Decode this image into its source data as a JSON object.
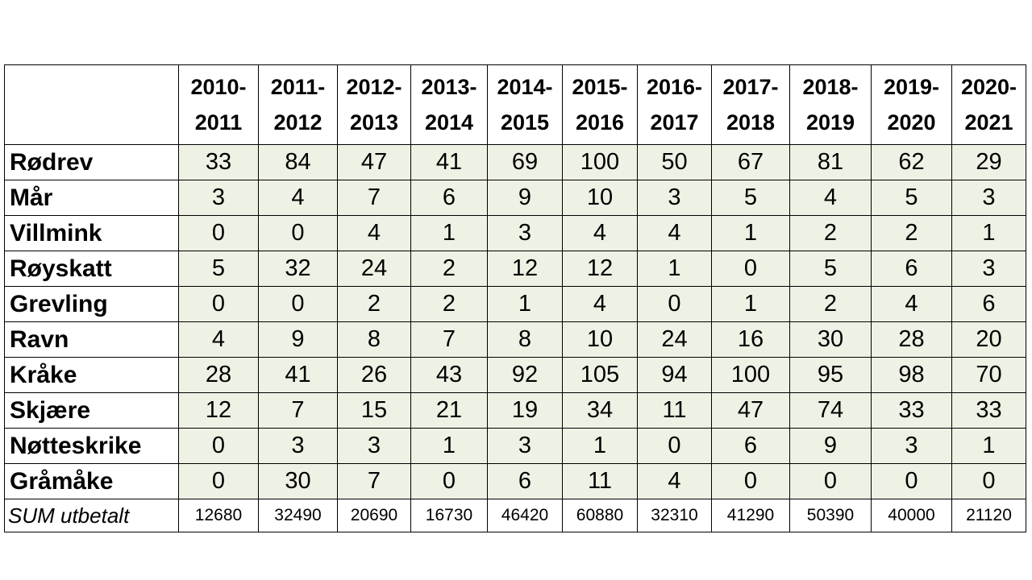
{
  "table": {
    "years": [
      {
        "line1": "2010-",
        "line2": "2011"
      },
      {
        "line1": "2011-",
        "line2": "2012"
      },
      {
        "line1": "2012-",
        "line2": "2013"
      },
      {
        "line1": "2013-",
        "line2": "2014"
      },
      {
        "line1": "2014-",
        "line2": "2015"
      },
      {
        "line1": "2015-",
        "line2": "2016"
      },
      {
        "line1": "2016-",
        "line2": "2017"
      },
      {
        "line1": "2017-",
        "line2": "2018"
      },
      {
        "line1": "2018-",
        "line2": "2019"
      },
      {
        "line1": "2019-",
        "line2": "2020"
      },
      {
        "line1": "2020-",
        "line2": "2021"
      }
    ],
    "rows": [
      {
        "label": "Rødrev",
        "values": [
          "33",
          "84",
          "47",
          "41",
          "69",
          "100",
          "50",
          "67",
          "81",
          "62",
          "29"
        ]
      },
      {
        "label": "Mår",
        "values": [
          "3",
          "4",
          "7",
          "6",
          "9",
          "10",
          "3",
          "5",
          "4",
          "5",
          "3"
        ]
      },
      {
        "label": "Villmink",
        "values": [
          "0",
          "0",
          "4",
          "1",
          "3",
          "4",
          "4",
          "1",
          "2",
          "2",
          "1"
        ]
      },
      {
        "label": "Røyskatt",
        "values": [
          "5",
          "32",
          "24",
          "2",
          "12",
          "12",
          "1",
          "0",
          "5",
          "6",
          "3"
        ]
      },
      {
        "label": "Grevling",
        "values": [
          "0",
          "0",
          "2",
          "2",
          "1",
          "4",
          "0",
          "1",
          "2",
          "4",
          "6"
        ]
      },
      {
        "label": "Ravn",
        "values": [
          "4",
          "9",
          "8",
          "7",
          "8",
          "10",
          "24",
          "16",
          "30",
          "28",
          "20"
        ]
      },
      {
        "label": "Kråke",
        "values": [
          "28",
          "41",
          "26",
          "43",
          "92",
          "105",
          "94",
          "100",
          "95",
          "98",
          "70"
        ]
      },
      {
        "label": "Skjære",
        "values": [
          "12",
          "7",
          "15",
          "21",
          "19",
          "34",
          "11",
          "47",
          "74",
          "33",
          "33"
        ]
      },
      {
        "label": "Nøtteskrike",
        "values": [
          "0",
          "3",
          "3",
          "1",
          "3",
          "1",
          "0",
          "6",
          "9",
          "3",
          "1"
        ]
      },
      {
        "label": "Gråmåke",
        "values": [
          "0",
          "30",
          "7",
          "0",
          "6",
          "11",
          "4",
          "0",
          "0",
          "0",
          "0"
        ]
      }
    ],
    "sum": {
      "label": "SUM utbetalt",
      "values": [
        "12680",
        "32490",
        "20690",
        "16730",
        "46420",
        "60880",
        "32310",
        "41290",
        "50390",
        "40000",
        "21120"
      ]
    }
  }
}
